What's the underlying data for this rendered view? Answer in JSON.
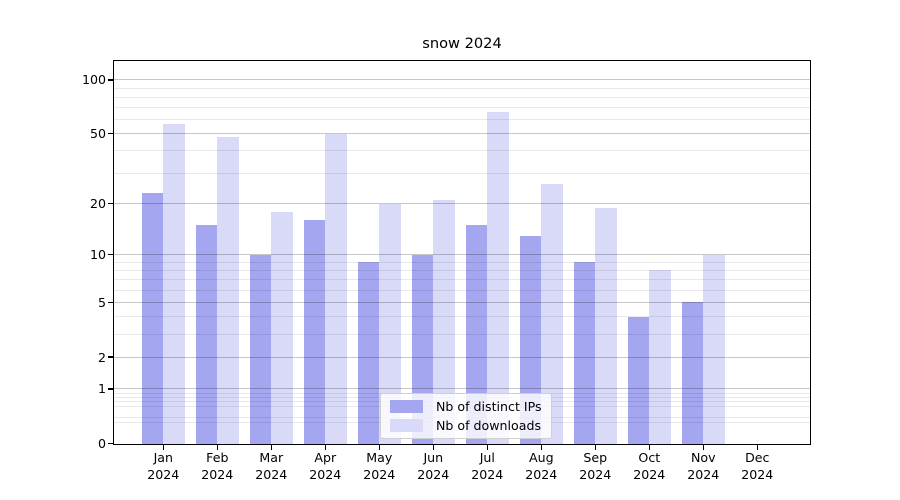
{
  "title": "snow 2024",
  "chart_data": {
    "type": "bar",
    "title": "snow 2024",
    "categories": [
      "Jan",
      "Feb",
      "Mar",
      "Apr",
      "May",
      "Jun",
      "Jul",
      "Aug",
      "Sep",
      "Oct",
      "Nov",
      "Dec"
    ],
    "year_label": "2024",
    "series": [
      {
        "name": "Nb of distinct IPs",
        "color": "#a5a6f0",
        "values": [
          23,
          15,
          10,
          16,
          9,
          10,
          15,
          13,
          9,
          4,
          5,
          0
        ]
      },
      {
        "name": "Nb of downloads",
        "color": "#d9daf8",
        "values": [
          57,
          48,
          18,
          50,
          20,
          21,
          66,
          26,
          19,
          8,
          10,
          0
        ]
      }
    ],
    "yscale": "log1p",
    "ylim": [
      0,
      128
    ],
    "y_major_ticks": [
      0,
      1,
      2,
      5,
      10,
      20,
      50,
      100
    ],
    "y_minor_ticks": [
      0.3,
      0.4,
      0.6,
      0.7,
      0.8,
      0.9,
      3,
      4,
      6,
      7,
      8,
      9,
      30,
      40,
      60,
      70,
      80,
      90
    ],
    "grid": true,
    "legend_position": "lower center"
  },
  "legend": {
    "items": [
      "Nb of distinct IPs",
      "Nb of downloads"
    ]
  }
}
